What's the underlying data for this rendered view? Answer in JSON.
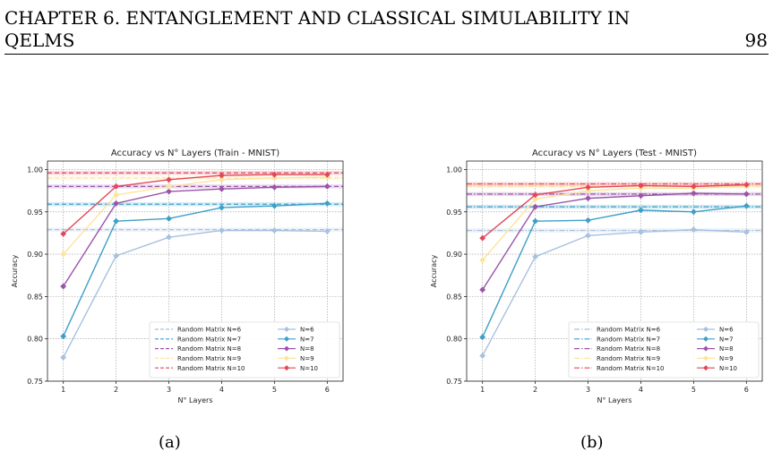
{
  "header": {
    "title_line1": "CHAPTER 6.   ENTANGLEMENT AND CLASSICAL SIMULABILITY IN",
    "title_line2": "QELMS",
    "page_number": "98"
  },
  "captions": [
    "(a)",
    "(b)"
  ],
  "colors": {
    "N6": "#a7c1e0",
    "N7": "#3ea0c8",
    "N8": "#9b54a8",
    "N9": "#fde49c",
    "N10": "#e3485a"
  },
  "chart_data": [
    {
      "type": "line",
      "title": "Accuracy vs N° Layers (Train - MNIST)",
      "xlabel": "N° Layers",
      "ylabel": "Accuracy",
      "x": [
        1,
        2,
        3,
        4,
        5,
        6
      ],
      "xlim": [
        0.7,
        6.3
      ],
      "ylim": [
        0.75,
        1.01
      ],
      "yticks": [
        "0.75",
        "0.80",
        "0.85",
        "0.90",
        "0.95",
        "1.00"
      ],
      "xticks": [
        "1",
        "2",
        "3",
        "4",
        "5",
        "6"
      ],
      "grid": true,
      "legend_position": "bottom-right",
      "baselines": [
        {
          "name": "Random Matrix N=6",
          "value": 0.929,
          "color": "#a7c1e0",
          "dash": "dashed"
        },
        {
          "name": "Random Matrix N=7",
          "value": 0.959,
          "color": "#3ea0c8",
          "dash": "dashed"
        },
        {
          "name": "Random Matrix N=8",
          "value": 0.98,
          "color": "#9b54a8",
          "dash": "dashed"
        },
        {
          "name": "Random Matrix N=9",
          "value": 0.99,
          "color": "#fde49c",
          "dash": "dashed"
        },
        {
          "name": "Random Matrix N=10",
          "value": 0.996,
          "color": "#e3485a",
          "dash": "dashed"
        }
      ],
      "series": [
        {
          "name": "N=6",
          "color": "#a7c1e0",
          "values": [
            0.778,
            0.898,
            0.92,
            0.928,
            0.928,
            0.927
          ]
        },
        {
          "name": "N=7",
          "color": "#3ea0c8",
          "values": [
            0.803,
            0.939,
            0.942,
            0.955,
            0.957,
            0.96
          ]
        },
        {
          "name": "N=8",
          "color": "#9b54a8",
          "values": [
            0.862,
            0.96,
            0.974,
            0.977,
            0.979,
            0.98
          ]
        },
        {
          "name": "N=9",
          "color": "#fde49c",
          "values": [
            0.9,
            0.97,
            0.98,
            0.988,
            0.99,
            0.991
          ]
        },
        {
          "name": "N=10",
          "color": "#e3485a",
          "values": [
            0.924,
            0.98,
            0.988,
            0.993,
            0.994,
            0.994
          ]
        }
      ]
    },
    {
      "type": "line",
      "title": "Accuracy vs N° Layers (Test - MNIST)",
      "xlabel": "N° Layers",
      "ylabel": "Accuracy",
      "x": [
        1,
        2,
        3,
        4,
        5,
        6
      ],
      "xlim": [
        0.7,
        6.3
      ],
      "ylim": [
        0.75,
        1.01
      ],
      "yticks": [
        "0.75",
        "0.80",
        "0.85",
        "0.90",
        "0.95",
        "1.00"
      ],
      "xticks": [
        "1",
        "2",
        "3",
        "4",
        "5",
        "6"
      ],
      "grid": true,
      "legend_position": "bottom-right",
      "baselines": [
        {
          "name": "Random Matrix N=6",
          "value": 0.928,
          "color": "#a7c1e0",
          "dash": "dashdot"
        },
        {
          "name": "Random Matrix N=7",
          "value": 0.956,
          "color": "#3ea0c8",
          "dash": "dashdot"
        },
        {
          "name": "Random Matrix N=8",
          "value": 0.971,
          "color": "#9b54a8",
          "dash": "dashdot"
        },
        {
          "name": "Random Matrix N=9",
          "value": 0.98,
          "color": "#fde49c",
          "dash": "dashdot"
        },
        {
          "name": "Random Matrix N=10",
          "value": 0.983,
          "color": "#e3485a",
          "dash": "dashdot"
        }
      ],
      "series": [
        {
          "name": "N=6",
          "color": "#a7c1e0",
          "values": [
            0.78,
            0.897,
            0.922,
            0.926,
            0.929,
            0.926
          ]
        },
        {
          "name": "N=7",
          "color": "#3ea0c8",
          "values": [
            0.802,
            0.939,
            0.94,
            0.952,
            0.95,
            0.957
          ]
        },
        {
          "name": "N=8",
          "color": "#9b54a8",
          "values": [
            0.858,
            0.956,
            0.966,
            0.969,
            0.972,
            0.971
          ]
        },
        {
          "name": "N=9",
          "color": "#fde49c",
          "values": [
            0.893,
            0.965,
            0.975,
            0.978,
            0.978,
            0.98
          ]
        },
        {
          "name": "N=10",
          "color": "#e3485a",
          "values": [
            0.919,
            0.97,
            0.979,
            0.981,
            0.98,
            0.982
          ]
        }
      ]
    }
  ]
}
